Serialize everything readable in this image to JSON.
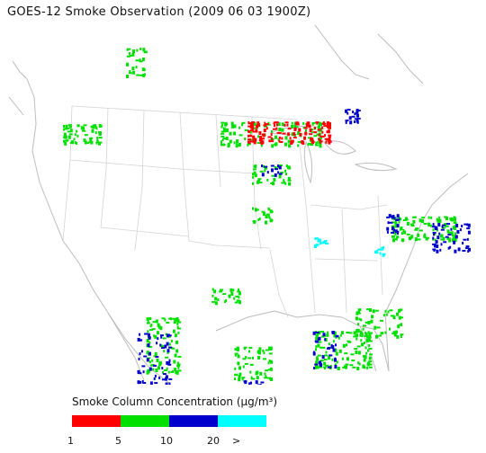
{
  "title": "GOES-12 Smoke Observation (2009 06 03  1900Z)",
  "legend": {
    "title": "Smoke Column Concentration (µg/m³)",
    "ticks": [
      "1",
      "5",
      "10",
      "20",
      ">"
    ],
    "colors": [
      "#ff0000",
      "#00e000",
      "#0000cc",
      "#00ffff"
    ]
  },
  "map_style": {
    "boundary_color": "#c8c8c8",
    "background": "#ffffff"
  }
}
